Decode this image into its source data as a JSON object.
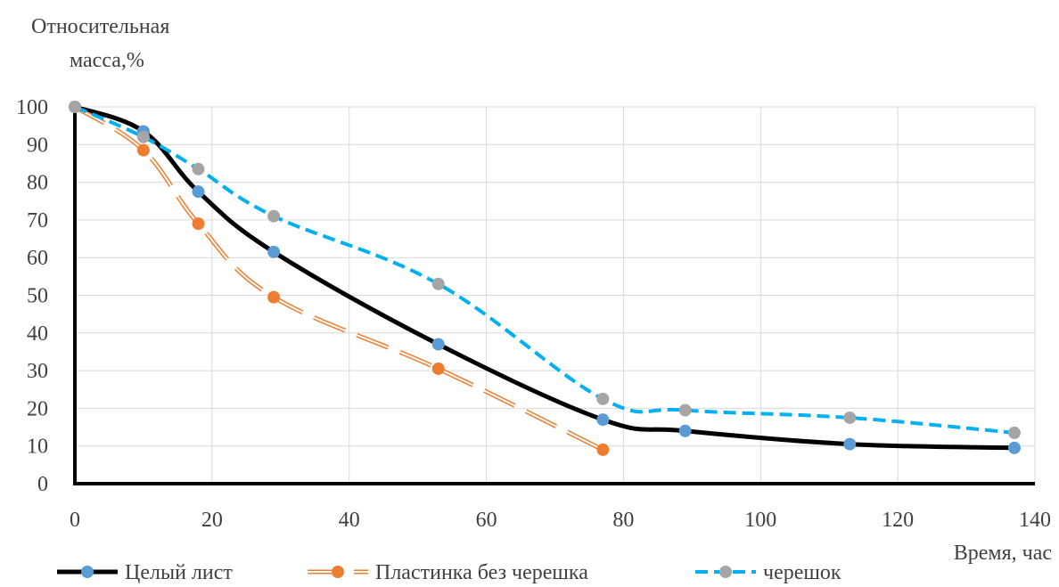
{
  "chart_data": {
    "type": "line",
    "title": "",
    "ylabel_line1": "Относительная",
    "ylabel_line2": "масса,%",
    "xlabel": "Время, час",
    "xlim": [
      0,
      140
    ],
    "ylim": [
      0,
      100
    ],
    "x_ticks": [
      0,
      20,
      40,
      60,
      80,
      100,
      120,
      140
    ],
    "y_ticks": [
      0,
      10,
      20,
      30,
      40,
      50,
      60,
      70,
      80,
      90,
      100
    ],
    "grid": "major",
    "legend_position": "bottom",
    "series": [
      {
        "name": "Целый лист",
        "line_color": "#000000",
        "marker_color": "#5B9BD5",
        "line_style": "solid",
        "x": [
          0,
          10,
          18,
          29,
          53,
          77,
          89,
          113,
          137
        ],
        "values": [
          100,
          93.5,
          77.5,
          61.5,
          37,
          17,
          14,
          10.5,
          9.5
        ]
      },
      {
        "name": "Пластинка без черешка",
        "line_color": "#ED7D31",
        "marker_color": "#ED7D31",
        "line_style": "double-dash",
        "x": [
          0,
          10,
          18,
          29,
          53,
          77
        ],
        "values": [
          100,
          88.5,
          69,
          49.5,
          30.5,
          9
        ]
      },
      {
        "name": "черешок",
        "line_color": "#00B0F0",
        "marker_color": "#A5A5A5",
        "line_style": "dashed",
        "x": [
          0,
          10,
          18,
          29,
          53,
          77,
          89,
          113,
          137
        ],
        "values": [
          100,
          92,
          83.5,
          71,
          53,
          22.5,
          19.5,
          17.5,
          13.5
        ]
      }
    ]
  }
}
